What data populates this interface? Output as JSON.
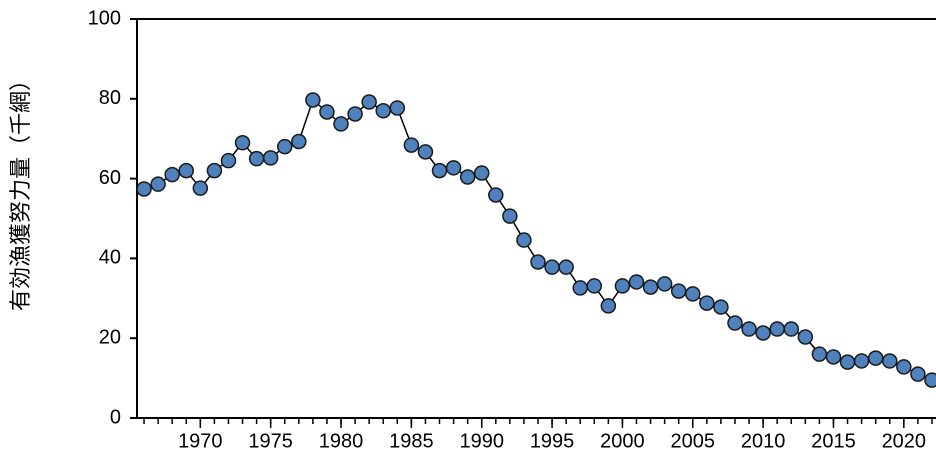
{
  "chart_data": {
    "type": "line",
    "y_label": "有効漁獲努力量（千網）",
    "x": [
      1966,
      1967,
      1968,
      1969,
      1970,
      1971,
      1972,
      1973,
      1974,
      1975,
      1976,
      1977,
      1978,
      1979,
      1980,
      1981,
      1982,
      1983,
      1984,
      1985,
      1986,
      1987,
      1988,
      1989,
      1990,
      1991,
      1992,
      1993,
      1994,
      1995,
      1996,
      1997,
      1998,
      1999,
      2000,
      2001,
      2002,
      2003,
      2004,
      2005,
      2006,
      2007,
      2008,
      2009,
      2010,
      2011,
      2012,
      2013,
      2014,
      2015,
      2016,
      2017,
      2018,
      2019,
      2020,
      2021,
      2022
    ],
    "values": [
      57.4,
      58.6,
      61,
      62,
      57.6,
      62,
      64.5,
      69,
      65,
      65.2,
      68,
      69.3,
      79.7,
      76.7,
      73.7,
      76.2,
      79.2,
      77,
      77.7,
      68.4,
      66.7,
      62,
      62.7,
      60.4,
      61.4,
      55.9,
      50.6,
      44.6,
      39.1,
      37.8,
      37.8,
      32.6,
      33.1,
      28.1,
      33.1,
      34.1,
      32.8,
      33.6,
      31.8,
      31.1,
      28.8,
      27.8,
      23.8,
      22.3,
      21.3,
      22.3,
      22.3,
      20.3,
      16,
      15.3,
      14,
      14.3,
      15,
      14.3,
      12.8,
      11,
      9.5
    ],
    "color": "#4f81bd",
    "xlim": [
      1965.5,
      2022.5
    ],
    "xticks": [
      1970,
      1975,
      1980,
      1985,
      1990,
      1995,
      2000,
      2005,
      2010,
      2015,
      2020
    ],
    "ylim": [
      0,
      100
    ],
    "yticks": [
      0,
      20,
      40,
      60,
      80,
      100
    ],
    "grid": false
  }
}
